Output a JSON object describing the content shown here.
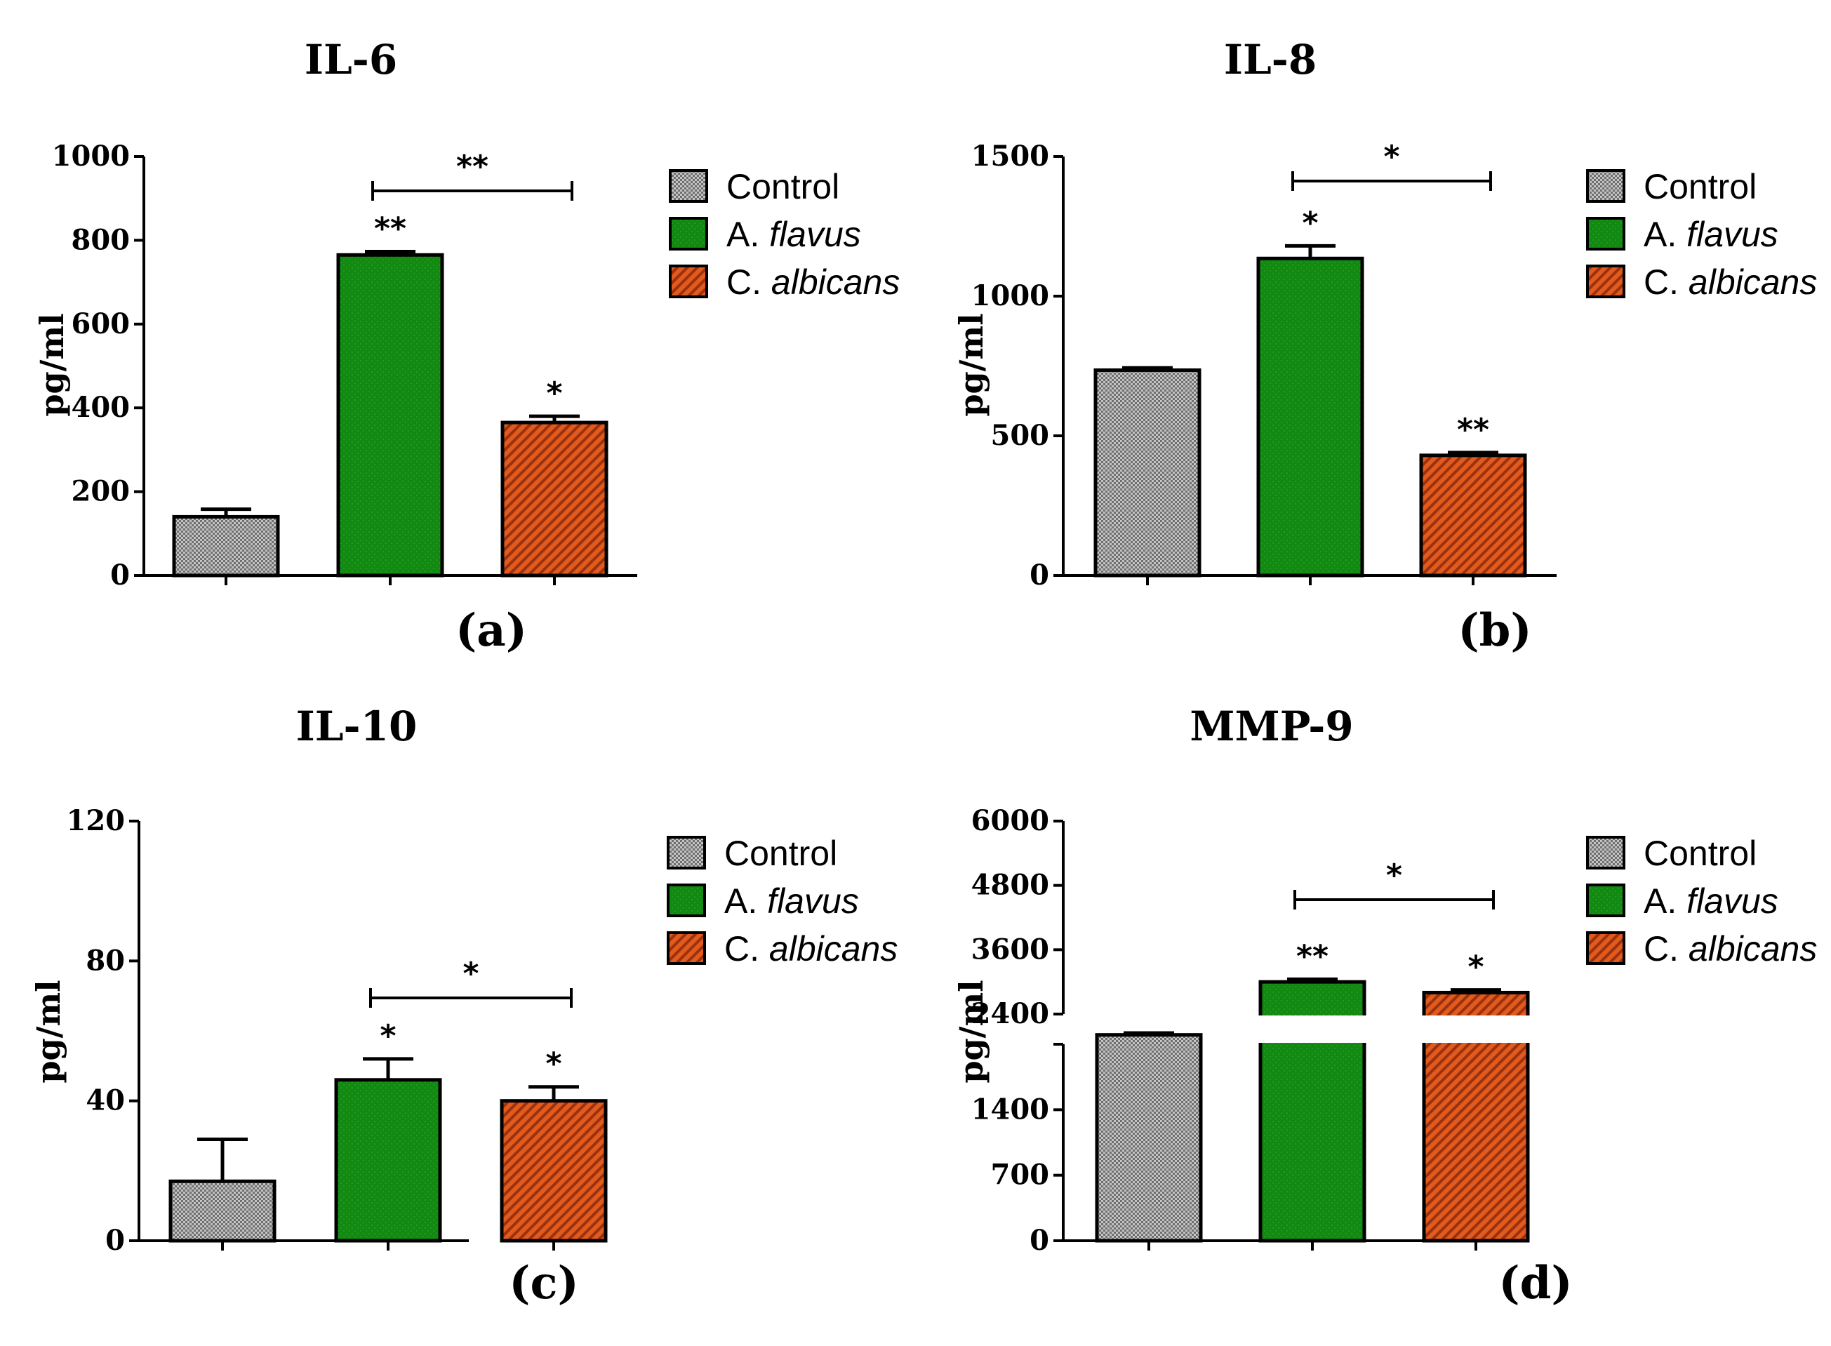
{
  "chart_data": [
    {
      "type": "bar",
      "panel_label": "(a)",
      "title": "IL-6",
      "ylabel": "pg/ml",
      "categories": [
        "Control",
        "A. flavus",
        "C. albicans"
      ],
      "values": [
        140,
        765,
        365
      ],
      "errors": [
        18,
        8,
        15
      ],
      "significance": [
        "",
        "**",
        "*"
      ],
      "comparison": {
        "from": 1,
        "to": 2,
        "label": "**"
      },
      "ylim": [
        0,
        1000
      ],
      "yticks": [
        "0",
        "200",
        "400",
        "600",
        "800",
        "1000"
      ],
      "grid": false,
      "legend_position": "right"
    },
    {
      "type": "bar",
      "panel_label": "(b)",
      "title": "IL-8",
      "ylabel": "pg/ml",
      "categories": [
        "Control",
        "A. flavus",
        "C. albicans"
      ],
      "values": [
        735,
        1135,
        430
      ],
      "errors": [
        8,
        45,
        10
      ],
      "significance": [
        "",
        "*",
        "**"
      ],
      "comparison": {
        "from": 1,
        "to": 2,
        "label": "*"
      },
      "ylim": [
        0,
        1500
      ],
      "yticks": [
        "0",
        "500",
        "1000",
        "1500"
      ],
      "grid": false,
      "legend_position": "right"
    },
    {
      "type": "bar",
      "panel_label": "(c)",
      "title": "IL-10",
      "ylabel": "pg/ml",
      "categories": [
        "Control",
        "A. flavus",
        "C. albicans"
      ],
      "values": [
        17,
        46,
        40
      ],
      "errors": [
        12,
        6,
        4
      ],
      "significance": [
        "",
        "*",
        "*"
      ],
      "comparison": {
        "from": 1,
        "to": 2,
        "label": "*"
      },
      "ylim": [
        0,
        120
      ],
      "yticks": [
        "0",
        "40",
        "80",
        "120"
      ],
      "grid": false,
      "legend_position": "right"
    },
    {
      "type": "bar",
      "panel_label": "(d)",
      "title": "MMP-9",
      "ylabel": "pg/ml",
      "categories": [
        "Control",
        "A. flavus",
        "C. albicans"
      ],
      "values": [
        2200,
        3000,
        2800
      ],
      "errors": [
        20,
        50,
        50
      ],
      "significance": [
        "",
        "**",
        "*"
      ],
      "comparison": {
        "from": 1,
        "to": 2,
        "label": "*"
      },
      "axis_break": {
        "lower": [
          0,
          2400
        ],
        "upper": [
          2400,
          6000
        ]
      },
      "yticks": [
        "0",
        "700",
        "1400",
        "2400",
        "3600",
        "4800",
        "6000"
      ],
      "grid": false,
      "legend_position": "right"
    }
  ],
  "legend": [
    "Control",
    "A. flavus",
    "C. albicans"
  ],
  "legend_parts": [
    {
      "prefix": "Control",
      "italic": ""
    },
    {
      "prefix": "A. ",
      "italic": "flavus"
    },
    {
      "prefix": "C. ",
      "italic": "albicans"
    }
  ],
  "colors": {
    "control": "#a9a9a9",
    "a_flavus": "#128a12",
    "c_albicans": "#e25a1c",
    "outline": "#000000"
  }
}
